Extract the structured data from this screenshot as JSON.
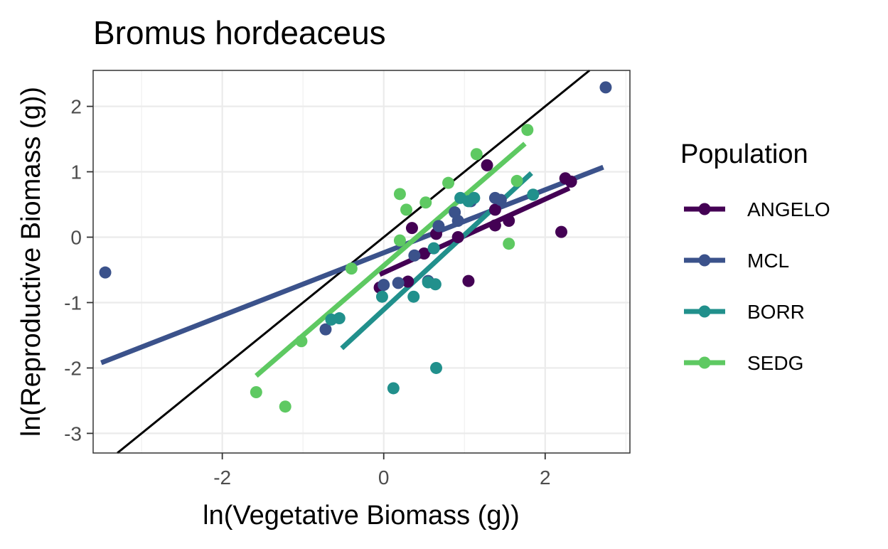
{
  "chart_data": {
    "type": "scatter",
    "title": "Bromus hordeaceus",
    "xlabel": "ln(Vegetative Biomass (g))",
    "ylabel": "ln(Reproductive Biomass (g))",
    "xlim": [
      -3.6,
      3.05
    ],
    "ylim": [
      -3.3,
      2.55
    ],
    "xticks": [
      -2,
      0,
      2
    ],
    "xtick_labels": [
      "-2",
      "0",
      "2"
    ],
    "yticks": [
      -3,
      -2,
      -1,
      0,
      1,
      2
    ],
    "ytick_labels": [
      "-3",
      "-2",
      "-1",
      "0",
      "1",
      "2"
    ],
    "grid": true,
    "legend_position": "right",
    "legend_title": "Population",
    "reference_line": {
      "slope": 1,
      "intercept": 0,
      "color": "#000000"
    },
    "series": [
      {
        "name": "ANGELO",
        "color": "#440154",
        "points": [
          [
            -0.05,
            -0.77
          ],
          [
            0.3,
            -0.68
          ],
          [
            0.35,
            0.14
          ],
          [
            0.5,
            -0.25
          ],
          [
            0.65,
            0.05
          ],
          [
            0.92,
            0.0
          ],
          [
            1.05,
            -0.67
          ],
          [
            1.28,
            1.1
          ],
          [
            1.38,
            0.42
          ],
          [
            1.38,
            0.18
          ],
          [
            1.55,
            0.25
          ],
          [
            2.2,
            0.08
          ],
          [
            2.25,
            0.9
          ],
          [
            2.32,
            0.85
          ]
        ],
        "fit": [
          [
            -0.05,
            -0.57
          ],
          [
            2.3,
            0.75
          ]
        ]
      },
      {
        "name": "MCL",
        "color": "#3b528b",
        "points": [
          [
            -3.45,
            -0.54
          ],
          [
            -0.72,
            -1.41
          ],
          [
            0.0,
            -0.73
          ],
          [
            0.18,
            -0.7
          ],
          [
            0.38,
            -0.28
          ],
          [
            0.55,
            -0.67
          ],
          [
            0.68,
            0.17
          ],
          [
            0.88,
            0.38
          ],
          [
            0.92,
            0.25
          ],
          [
            1.08,
            0.55
          ],
          [
            1.38,
            0.6
          ],
          [
            1.45,
            0.57
          ],
          [
            2.75,
            2.29
          ]
        ],
        "fit": [
          [
            -3.5,
            -1.92
          ],
          [
            2.72,
            1.07
          ]
        ]
      },
      {
        "name": "BORR",
        "color": "#21908c",
        "points": [
          [
            -0.55,
            -1.24
          ],
          [
            -0.65,
            -1.26
          ],
          [
            -0.02,
            -0.91
          ],
          [
            0.12,
            -2.31
          ],
          [
            0.37,
            -0.91
          ],
          [
            0.55,
            -0.69
          ],
          [
            0.62,
            -0.17
          ],
          [
            0.64,
            -0.72
          ],
          [
            0.65,
            -2.0
          ],
          [
            0.95,
            0.6
          ],
          [
            1.05,
            0.55
          ],
          [
            1.12,
            0.6
          ],
          [
            1.85,
            0.65
          ]
        ],
        "fit": [
          [
            -0.52,
            -1.7
          ],
          [
            1.83,
            0.98
          ]
        ]
      },
      {
        "name": "SEDG",
        "color": "#5ec962",
        "points": [
          [
            -1.58,
            -2.37
          ],
          [
            -1.22,
            -2.59
          ],
          [
            -1.02,
            -1.59
          ],
          [
            -0.4,
            -0.48
          ],
          [
            0.2,
            -0.05
          ],
          [
            0.2,
            0.66
          ],
          [
            0.28,
            0.42
          ],
          [
            0.52,
            0.53
          ],
          [
            0.8,
            0.83
          ],
          [
            1.15,
            1.27
          ],
          [
            1.55,
            -0.1
          ],
          [
            1.65,
            0.86
          ],
          [
            1.78,
            1.64
          ]
        ],
        "fit": [
          [
            -1.58,
            -2.12
          ],
          [
            1.75,
            1.43
          ]
        ]
      }
    ]
  }
}
